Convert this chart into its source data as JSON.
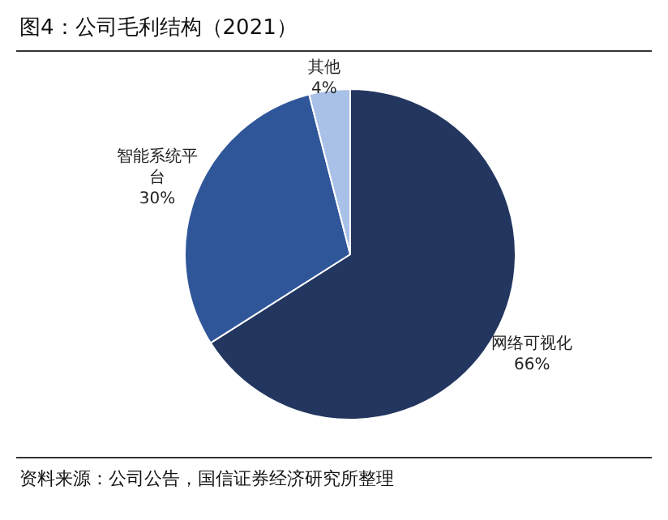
{
  "chart_data": {
    "type": "pie",
    "title": "图4：公司毛利结构（2021）",
    "categories": [
      "网络可视化",
      "智能系统平台",
      "其他"
    ],
    "values": [
      66,
      30,
      4
    ],
    "value_labels": [
      "66%",
      "30%",
      "4%"
    ],
    "colors": [
      "#22365f",
      "#30569a",
      "#a9c1e8"
    ],
    "legend": false,
    "annotations": [
      "资料来源：公司公告，国信证券经济研究所整理"
    ]
  }
}
